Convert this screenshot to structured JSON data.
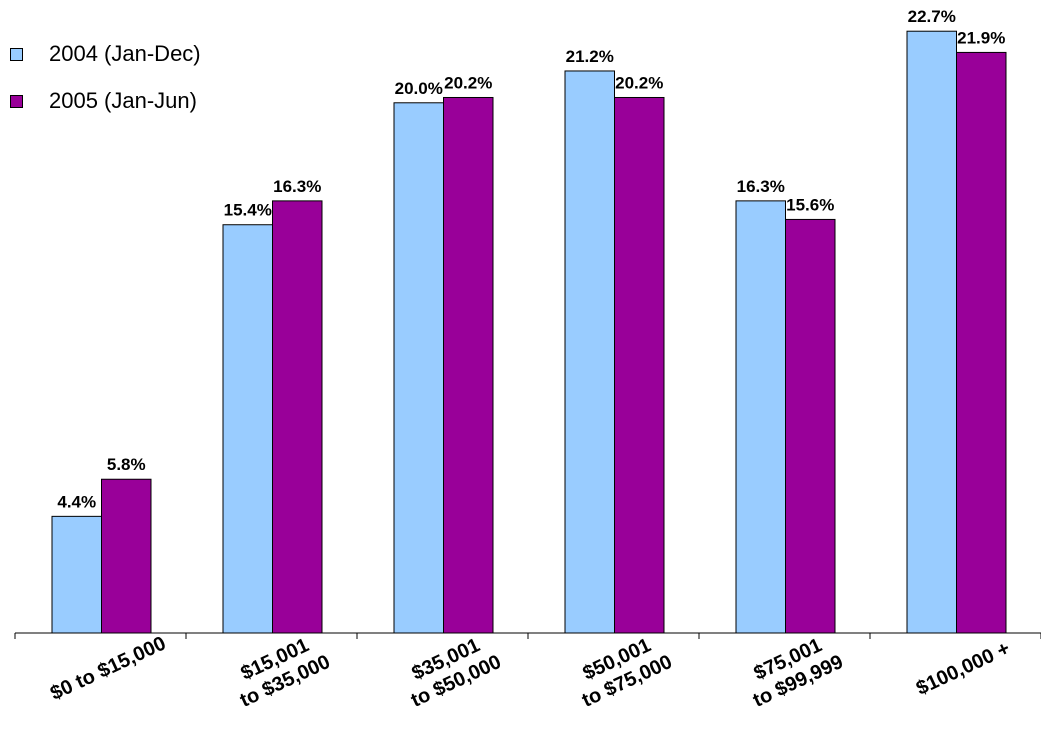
{
  "chart_data": {
    "type": "bar",
    "title": "",
    "xlabel": "",
    "ylabel": "",
    "ylim": [
      0,
      23.5
    ],
    "grid": false,
    "legend_position": "top-left",
    "categories": [
      [
        "$0 to $15,000"
      ],
      [
        "$15,001",
        "to $35,000"
      ],
      [
        "$35,001",
        "to $50,000"
      ],
      [
        "$50,001",
        "to $75,000"
      ],
      [
        "$75,001",
        "to $99,999"
      ],
      [
        "$100,000 +"
      ]
    ],
    "series": [
      {
        "name": "2004 (Jan-Dec)",
        "color": "#99ccff",
        "values": [
          4.4,
          15.4,
          20.0,
          21.2,
          16.3,
          22.7
        ],
        "labels": [
          "4.4%",
          "15.4%",
          "20.0%",
          "21.2%",
          "16.3%",
          "22.7%"
        ]
      },
      {
        "name": "2005 (Jan-Jun)",
        "color": "#990099",
        "values": [
          5.8,
          16.3,
          20.2,
          20.2,
          15.6,
          21.9
        ],
        "labels": [
          "5.8%",
          "16.3%",
          "20.2%",
          "20.2%",
          "15.6%",
          "21.9%"
        ]
      }
    ]
  }
}
